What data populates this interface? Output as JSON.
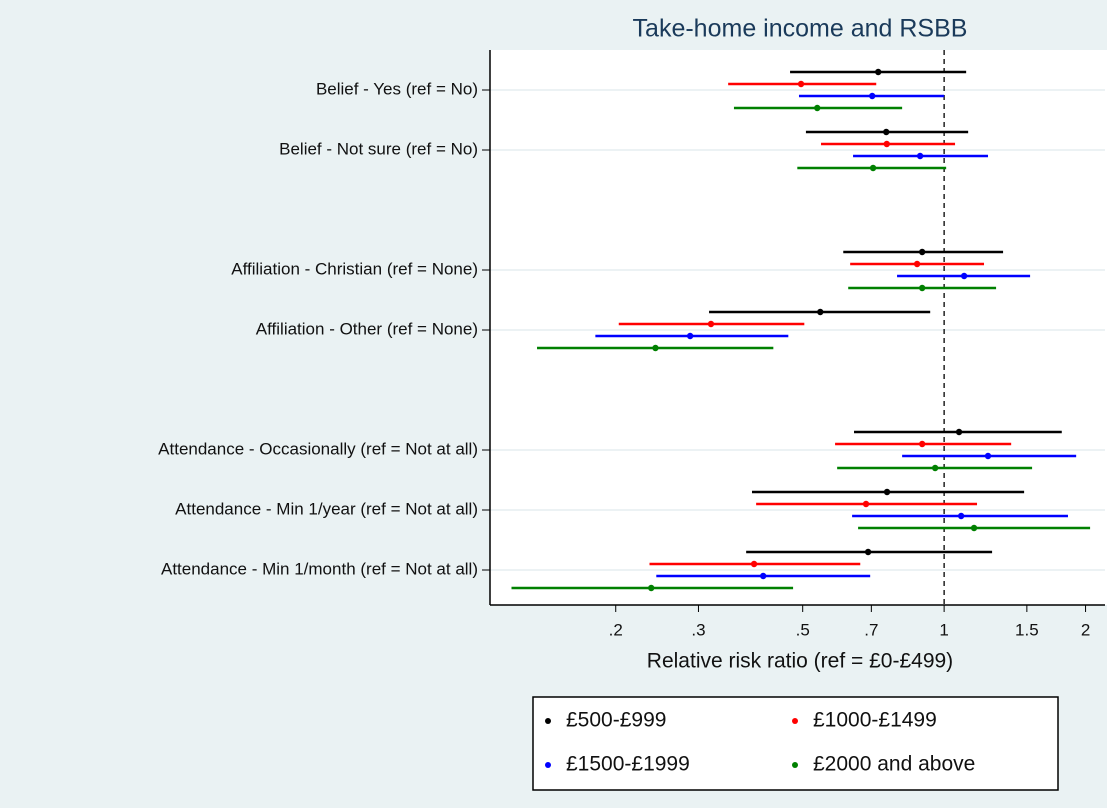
{
  "chart_data": {
    "type": "forest",
    "title": "Take-home income and RSBB",
    "x_label": "Relative risk ratio (ref = £0-£499)",
    "log_x": true,
    "xlim": [
      0.108,
      2.2
    ],
    "xticks": [
      {
        "value": 0.2,
        "label": ".2"
      },
      {
        "value": 0.3,
        "label": ".3"
      },
      {
        "value": 0.5,
        "label": ".5"
      },
      {
        "value": 0.7,
        "label": ".7"
      },
      1,
      1.5,
      2
    ],
    "refline": 1,
    "grid": true,
    "legend": "bottom",
    "categories": [
      "Belief - Yes (ref = No)",
      "Belief - Not sure (ref = No)",
      null,
      "Affiliation - Christian (ref = None)",
      "Affiliation - Other (ref = None)",
      null,
      "Attendance - Occasionally (ref = Not at all)",
      "Attendance - Min 1/year (ref = Not at all)",
      "Attendance - Min 1/month (ref = Not at all)"
    ],
    "series": [
      {
        "name": "£500-£999",
        "color": "#000000",
        "values": [
          0.724,
          0.753,
          null,
          0.898,
          0.545,
          null,
          1.076,
          0.756,
          0.689
        ],
        "lower": [
          0.47,
          0.508,
          null,
          0.61,
          0.316,
          null,
          0.643,
          0.39,
          0.379
        ],
        "upper": [
          1.114,
          1.125,
          null,
          1.335,
          0.934,
          null,
          1.78,
          1.48,
          1.265
        ]
      },
      {
        "name": "£1000-£1499",
        "color": "#ff0000",
        "values": [
          0.496,
          0.755,
          null,
          0.876,
          0.319,
          null,
          0.898,
          0.682,
          0.394
        ],
        "lower": [
          0.347,
          0.547,
          null,
          0.631,
          0.203,
          null,
          0.586,
          0.398,
          0.236
        ],
        "upper": [
          0.717,
          1.055,
          null,
          1.216,
          0.504,
          null,
          1.389,
          1.175,
          0.663
        ]
      },
      {
        "name": "£1500-£1999",
        "color": "#0000ff",
        "values": [
          0.703,
          0.889,
          null,
          1.103,
          0.288,
          null,
          1.24,
          1.087,
          0.412
        ],
        "lower": [
          0.491,
          0.64,
          null,
          0.794,
          0.181,
          null,
          0.814,
          0.637,
          0.244
        ],
        "upper": [
          1.0,
          1.24,
          null,
          1.524,
          0.466,
          null,
          1.91,
          1.835,
          0.696
        ]
      },
      {
        "name": "£2000 and above",
        "color": "#008000",
        "values": [
          0.537,
          0.706,
          null,
          0.898,
          0.243,
          null,
          0.957,
          1.158,
          0.238
        ],
        "lower": [
          0.357,
          0.487,
          null,
          0.625,
          0.136,
          null,
          0.592,
          0.656,
          0.12
        ],
        "upper": [
          0.814,
          1.01,
          null,
          1.29,
          0.433,
          null,
          1.539,
          2.045,
          0.477
        ]
      }
    ]
  }
}
